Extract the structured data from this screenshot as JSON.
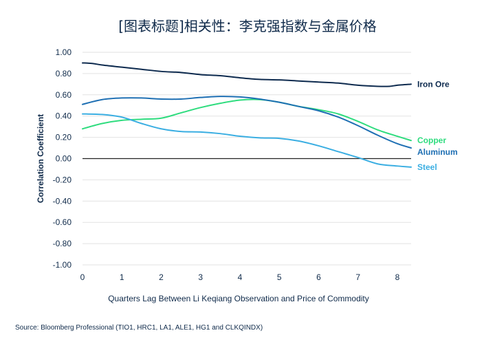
{
  "title": "[图表标题]相关性：李克强指数与金属价格",
  "source": "Source: Bloomberg Professional (TIO1, HRC1, LA1, ALE1, HG1 and CLKQINDX)",
  "chart_data": {
    "type": "line",
    "xlabel": "Quarters Lag Between Li Keqiang Observation and Price of Commodity",
    "ylabel": "Correlation Coefficient",
    "xlim": [
      0,
      8.35
    ],
    "ylim": [
      -1.0,
      1.0
    ],
    "x_ticks": [
      "0",
      "1",
      "2",
      "3",
      "4",
      "5",
      "6",
      "7",
      "8"
    ],
    "y_ticks": [
      "1.00",
      "0.80",
      "0.60",
      "0.40",
      "0.20",
      "0.00",
      "-0.20",
      "-0.40",
      "-0.60",
      "-0.80",
      "-1.00"
    ],
    "grid": "horizontal",
    "legend": "labels at line ends",
    "series": [
      {
        "name": "Iron Ore",
        "color": "#0d2a4e",
        "x": [
          0,
          0.25,
          0.5,
          1,
          1.5,
          2,
          2.5,
          3,
          3.5,
          4,
          4.5,
          5,
          5.5,
          6,
          6.5,
          7,
          7.5,
          7.8,
          8,
          8.35
        ],
        "y": [
          0.9,
          0.895,
          0.88,
          0.86,
          0.84,
          0.82,
          0.81,
          0.79,
          0.78,
          0.76,
          0.745,
          0.74,
          0.73,
          0.72,
          0.71,
          0.69,
          0.68,
          0.68,
          0.69,
          0.7
        ]
      },
      {
        "name": "Copper",
        "color": "#2edc7e",
        "x": [
          0,
          0.5,
          1,
          1.5,
          2,
          2.5,
          3,
          3.5,
          4,
          4.5,
          5,
          5.5,
          6,
          6.5,
          7,
          7.5,
          8,
          8.35
        ],
        "y": [
          0.28,
          0.33,
          0.36,
          0.37,
          0.38,
          0.43,
          0.48,
          0.52,
          0.55,
          0.555,
          0.53,
          0.49,
          0.46,
          0.42,
          0.35,
          0.27,
          0.21,
          0.17
        ]
      },
      {
        "name": "Aluminum",
        "color": "#1e6fb3",
        "x": [
          0,
          0.5,
          1,
          1.5,
          2,
          2.5,
          3,
          3.5,
          4,
          4.5,
          5,
          5.5,
          6,
          6.5,
          7,
          7.5,
          8,
          8.35
        ],
        "y": [
          0.51,
          0.555,
          0.57,
          0.57,
          0.56,
          0.56,
          0.575,
          0.585,
          0.58,
          0.56,
          0.53,
          0.49,
          0.45,
          0.39,
          0.31,
          0.22,
          0.14,
          0.1
        ]
      },
      {
        "name": "Steel",
        "color": "#3aaee2",
        "x": [
          0,
          0.5,
          1,
          1.5,
          2,
          2.5,
          3,
          3.5,
          4,
          4.5,
          5,
          5.5,
          6,
          6.5,
          7,
          7.5,
          8,
          8.35
        ],
        "y": [
          0.42,
          0.415,
          0.39,
          0.33,
          0.28,
          0.255,
          0.25,
          0.235,
          0.21,
          0.195,
          0.19,
          0.165,
          0.12,
          0.065,
          0.01,
          -0.05,
          -0.07,
          -0.08
        ]
      }
    ]
  }
}
